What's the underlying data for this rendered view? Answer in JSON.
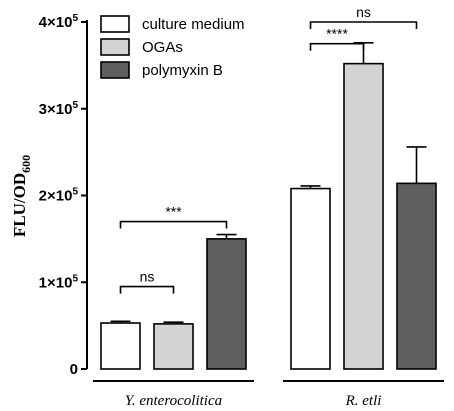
{
  "chart_data": {
    "type": "bar",
    "ylabel_main": "FLU/OD",
    "ylabel_sub": "600",
    "ylim": [
      0,
      400000
    ],
    "yticks": [
      {
        "value": 0,
        "mant": "0",
        "exp": ""
      },
      {
        "value": 100000,
        "mant": "1×10",
        "exp": "5"
      },
      {
        "value": 200000,
        "mant": "2×10",
        "exp": "5"
      },
      {
        "value": 300000,
        "mant": "3×10",
        "exp": "5"
      },
      {
        "value": 400000,
        "mant": "4×10",
        "exp": "5"
      }
    ],
    "groups": [
      "Y. enterocolitica",
      "R. etli"
    ],
    "series": [
      {
        "name": "culture medium",
        "color": "#ffffff",
        "values": [
          53000,
          208000
        ],
        "errors": [
          2000,
          3000
        ]
      },
      {
        "name": "OGAs",
        "color": "#d3d3d3",
        "values": [
          52000,
          352000
        ],
        "errors": [
          2000,
          24000
        ]
      },
      {
        "name": "polymyxin B",
        "color": "#5f5f5f",
        "values": [
          150000,
          214000
        ],
        "errors": [
          5000,
          42000
        ]
      }
    ],
    "legend_position": "top-left",
    "significance": [
      {
        "group": 0,
        "from": 0,
        "to": 1,
        "label": "ns",
        "y": 95000
      },
      {
        "group": 0,
        "from": 0,
        "to": 2,
        "label": "***",
        "y": 170000
      },
      {
        "group": 1,
        "from": 0,
        "to": 1,
        "label": "****",
        "y": 375000
      },
      {
        "group": 1,
        "from": 0,
        "to": 2,
        "label": "ns",
        "y": 400000
      }
    ]
  }
}
